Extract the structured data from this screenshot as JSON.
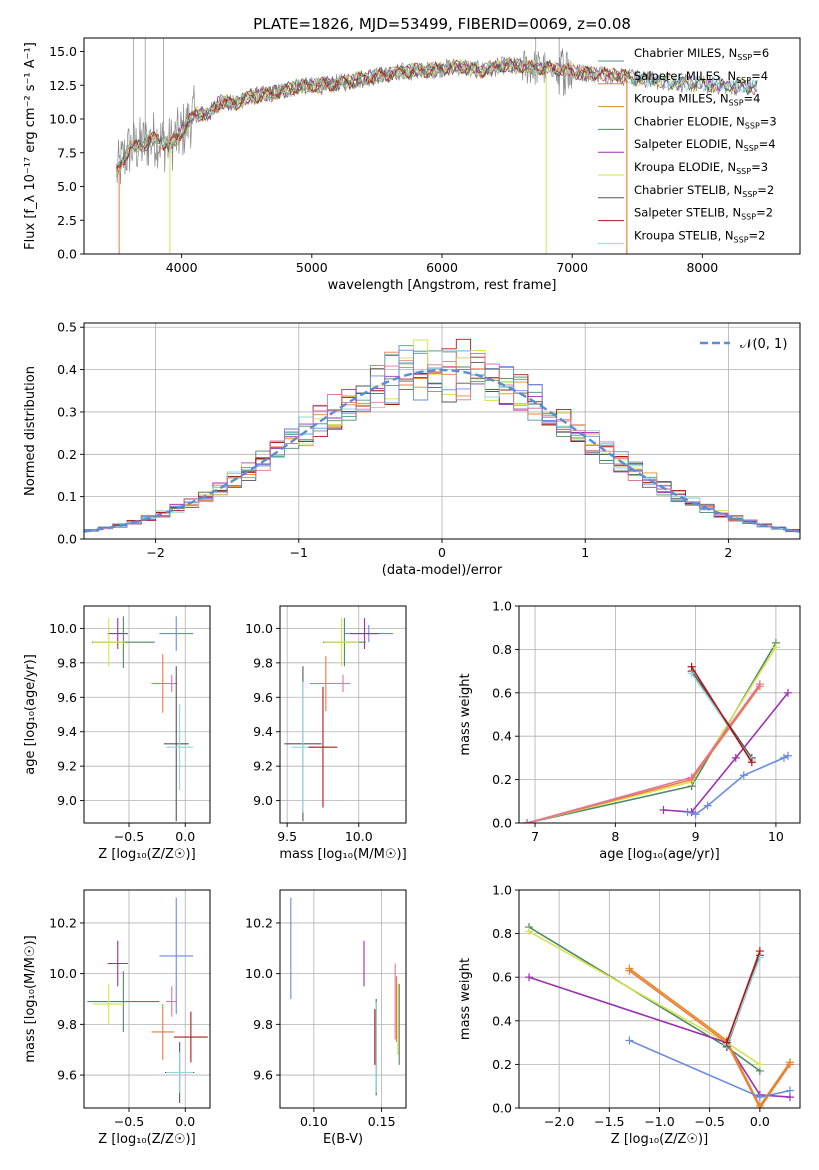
{
  "title": "PLATE=1826, MJD=53499, FIBERID=0069, z=0.08",
  "colors": {
    "Chabrier MILES": "#4f9a95",
    "Salpeter MILES": "#ef7a3c",
    "Kroupa MILES": "#e08a2a",
    "Chabrier ELODIE": "#4f8a66",
    "Salpeter ELODIE": "#9b30b0",
    "Kroupa ELODIE": "#d6e24f",
    "Chabrier STELIB": "#555555",
    "Salpeter STELIB": "#b01818",
    "Kroupa STELIB": "#8fd6dd",
    "Gauss": "#5b8dd6",
    "Extra1": "#e0759e",
    "Extra2": "#6a8bdd",
    "data": "#888888"
  },
  "chart_data": [
    {
      "id": "spectrum",
      "type": "line",
      "title": "PLATE=1826, MJD=53499, FIBERID=0069, z=0.08",
      "xlabel": "wavelength [Angstrom, rest frame]",
      "ylabel": "Flux [f_λ 10⁻¹⁷ erg cm⁻² s⁻¹ A⁻¹]",
      "xlim": [
        3250,
        8750
      ],
      "ylim": [
        0,
        16
      ],
      "xticks": [
        4000,
        5000,
        6000,
        7000,
        8000
      ],
      "yticks": [
        0.0,
        2.5,
        5.0,
        7.5,
        10.0,
        12.5,
        15.0
      ],
      "grid": false,
      "legend_loc": "upper-right",
      "continuum": {
        "x": [
          3500,
          3550,
          3600,
          3700,
          3800,
          3900,
          4000,
          4100,
          4200,
          4300,
          4400,
          4500,
          4700,
          4900,
          5100,
          5300,
          5500,
          5700,
          5900,
          6100,
          6300,
          6500,
          6700,
          6900,
          7100,
          7300,
          7500,
          7700,
          7900,
          8100,
          8300,
          8400
        ],
        "y": [
          6.0,
          7.0,
          7.8,
          8.1,
          8.6,
          8.0,
          9.0,
          10.4,
          10.3,
          11.3,
          11.1,
          11.6,
          11.9,
          12.4,
          12.5,
          12.8,
          13.2,
          13.5,
          13.6,
          13.9,
          13.6,
          14.0,
          13.8,
          13.7,
          13.4,
          13.3,
          13.0,
          12.8,
          12.6,
          12.5,
          12.4,
          12.4
        ]
      },
      "legend": [
        {
          "name": "Chabrier MILES, N_SSP=6",
          "key": "Chabrier MILES"
        },
        {
          "name": "Salpeter MILES, N_SSP=4",
          "key": "Salpeter MILES"
        },
        {
          "name": "Kroupa MILES, N_SSP=4",
          "key": "Kroupa MILES"
        },
        {
          "name": "Chabrier ELODIE, N_SSP=3",
          "key": "Chabrier ELODIE"
        },
        {
          "name": "Salpeter ELODIE, N_SSP=4",
          "key": "Salpeter ELODIE"
        },
        {
          "name": "Kroupa ELODIE, N_SSP=3",
          "key": "Kroupa ELODIE"
        },
        {
          "name": "Chabrier STELIB, N_SSP=2",
          "key": "Chabrier STELIB"
        },
        {
          "name": "Salpeter STELIB, N_SSP=2",
          "key": "Salpeter STELIB"
        },
        {
          "name": "Kroupa STELIB, N_SSP=2",
          "key": "Kroupa STELIB"
        }
      ]
    },
    {
      "id": "residuals",
      "type": "line",
      "xlabel": "(data-model)/error",
      "ylabel": "Normed distribution",
      "xlim": [
        -2.5,
        2.5
      ],
      "ylim": [
        0,
        0.51
      ],
      "xticks": [
        -2,
        -1,
        0,
        1,
        2
      ],
      "yticks": [
        0.0,
        0.1,
        0.2,
        0.3,
        0.4,
        0.5
      ],
      "grid": true,
      "legend": [
        {
          "name": "𝒩(0, 1)",
          "key": "Gauss"
        }
      ],
      "legend_loc": "upper-right",
      "bin_width": 0.1,
      "gaussian": {
        "mean": 0,
        "sigma": 1
      }
    },
    {
      "id": "age-vs-Z",
      "type": "scatter",
      "xlabel": "Z [log₁₀(Z/Z☉)]",
      "ylabel": "age  [log₁₀(age/yr)]",
      "xlim": [
        -0.9,
        0.22
      ],
      "ylim": [
        8.87,
        10.13
      ],
      "xticks": [
        -0.5,
        0.0
      ],
      "yticks": [
        9.0,
        9.2,
        9.4,
        9.6,
        9.8,
        10.0
      ],
      "grid": true,
      "points": [
        {
          "x": -0.6,
          "y": 9.97,
          "xerr": 0.09,
          "yerr": 0.09,
          "key": "Salpeter ELODIE"
        },
        {
          "x": -0.08,
          "y": 9.97,
          "xerr": 0.15,
          "yerr": 0.1,
          "key": "Extra2"
        },
        {
          "x": -0.55,
          "y": 9.92,
          "xerr": 0.28,
          "yerr": 0.15,
          "key": "Chabrier ELODIE"
        },
        {
          "x": -0.68,
          "y": 9.92,
          "xerr": 0.14,
          "yerr": 0.14,
          "key": "Kroupa ELODIE"
        },
        {
          "x": -0.2,
          "y": 9.68,
          "xerr": 0.1,
          "yerr": 0.17,
          "key": "Salpeter MILES"
        },
        {
          "x": -0.12,
          "y": 9.68,
          "xerr": 0.05,
          "yerr": 0.05,
          "key": "Extra1"
        },
        {
          "x": -0.08,
          "y": 9.33,
          "xerr": 0.11,
          "yerr": 0.45,
          "key": "Chabrier STELIB"
        },
        {
          "x": -0.05,
          "y": 9.31,
          "xerr": 0.12,
          "yerr": 0.25,
          "key": "Kroupa STELIB"
        }
      ]
    },
    {
      "id": "age-vs-mass",
      "type": "scatter",
      "xlabel": "mass [log₁₀(M/M☉)]",
      "ylabel": "",
      "xlim": [
        9.45,
        10.33
      ],
      "ylim": [
        8.87,
        10.13
      ],
      "xticks": [
        9.5,
        10.0
      ],
      "yticks": [
        9.0,
        9.2,
        9.4,
        9.6,
        9.8,
        10.0
      ],
      "grid": true,
      "points": [
        {
          "x": 10.07,
          "y": 9.97,
          "xerr": 0.17,
          "yerr": 0.05,
          "key": "Extra2"
        },
        {
          "x": 10.04,
          "y": 9.97,
          "xerr": 0.1,
          "yerr": 0.09,
          "key": "Salpeter ELODIE"
        },
        {
          "x": 9.9,
          "y": 9.92,
          "xerr": 0.15,
          "yerr": 0.14,
          "key": "Chabrier ELODIE"
        },
        {
          "x": 9.88,
          "y": 9.92,
          "xerr": 0.12,
          "yerr": 0.14,
          "key": "Kroupa ELODIE"
        },
        {
          "x": 9.77,
          "y": 9.68,
          "xerr": 0.11,
          "yerr": 0.16,
          "key": "Salpeter MILES"
        },
        {
          "x": 9.89,
          "y": 9.68,
          "xerr": 0.05,
          "yerr": 0.05,
          "key": "Extra1"
        },
        {
          "x": 9.61,
          "y": 9.33,
          "xerr": 0.13,
          "yerr": 0.45,
          "key": "Chabrier STELIB"
        },
        {
          "x": 9.61,
          "y": 9.31,
          "xerr": 0.08,
          "yerr": 0.38,
          "key": "Kroupa STELIB"
        },
        {
          "x": 9.75,
          "y": 9.31,
          "xerr": 0.1,
          "yerr": 0.35,
          "key": "Salpeter STELIB"
        }
      ]
    },
    {
      "id": "mass-weight-vs-age",
      "type": "line",
      "xlabel": "age  [log₁₀(age/yr)]",
      "ylabel": "mass weight",
      "xlim": [
        6.8,
        10.3
      ],
      "ylim": [
        0,
        1
      ],
      "xticks": [
        7,
        8,
        9,
        10
      ],
      "yticks": [
        0.0,
        0.2,
        0.4,
        0.6,
        0.8,
        1.0
      ],
      "grid": true,
      "series": [
        {
          "key": "Chabrier ELODIE",
          "x": [
            6.9,
            8.95,
            10.0
          ],
          "y": [
            0.0,
            0.17,
            0.83
          ]
        },
        {
          "key": "Kroupa ELODIE",
          "x": [
            6.9,
            8.95,
            10.0
          ],
          "y": [
            0.0,
            0.19,
            0.81
          ]
        },
        {
          "key": "Salpeter MILES",
          "x": [
            6.9,
            8.95,
            9.8
          ],
          "y": [
            0.0,
            0.2,
            0.63
          ]
        },
        {
          "key": "Extra1",
          "x": [
            6.9,
            8.95,
            9.8
          ],
          "y": [
            0.0,
            0.21,
            0.64
          ]
        },
        {
          "key": "Salpeter ELODIE",
          "x": [
            8.6,
            8.95,
            9.5,
            10.15
          ],
          "y": [
            0.06,
            0.05,
            0.3,
            0.6
          ]
        },
        {
          "key": "Extra2",
          "x": [
            8.9,
            9.0,
            9.15,
            9.6,
            10.1,
            10.15
          ],
          "y": [
            0.05,
            0.04,
            0.08,
            0.22,
            0.3,
            0.31
          ]
        },
        {
          "key": "Chabrier STELIB",
          "x": [
            8.95,
            9.7
          ],
          "y": [
            0.7,
            0.3
          ]
        },
        {
          "key": "Kroupa STELIB",
          "x": [
            8.95,
            9.7
          ],
          "y": [
            0.69,
            0.29
          ]
        },
        {
          "key": "Salpeter STELIB",
          "x": [
            8.95,
            9.7
          ],
          "y": [
            0.72,
            0.28
          ]
        }
      ]
    },
    {
      "id": "mass-vs-Z",
      "type": "scatter",
      "xlabel": "Z [log₁₀(Z/Z☉)]",
      "ylabel": "mass [log₁₀(M/M☉)]",
      "xlim": [
        -0.9,
        0.22
      ],
      "ylim": [
        9.47,
        10.33
      ],
      "xticks": [
        -0.5,
        0.0
      ],
      "yticks": [
        9.6,
        9.8,
        10.0,
        10.2
      ],
      "grid": true,
      "points": [
        {
          "x": -0.08,
          "y": 10.07,
          "xerr": 0.15,
          "yerr": 0.23,
          "key": "Extra2"
        },
        {
          "x": -0.6,
          "y": 10.04,
          "xerr": 0.09,
          "yerr": 0.09,
          "key": "Salpeter ELODIE"
        },
        {
          "x": -0.55,
          "y": 9.89,
          "xerr": 0.32,
          "yerr": 0.12,
          "key": "Chabrier ELODIE"
        },
        {
          "x": -0.68,
          "y": 9.88,
          "xerr": 0.14,
          "yerr": 0.08,
          "key": "Kroupa ELODIE"
        },
        {
          "x": -0.12,
          "y": 9.89,
          "xerr": 0.05,
          "yerr": 0.06,
          "key": "Extra1"
        },
        {
          "x": -0.2,
          "y": 9.77,
          "xerr": 0.1,
          "yerr": 0.11,
          "key": "Salpeter MILES"
        },
        {
          "x": 0.05,
          "y": 9.75,
          "xerr": 0.15,
          "yerr": 0.1,
          "key": "Salpeter STELIB"
        },
        {
          "x": -0.05,
          "y": 9.61,
          "xerr": 0.13,
          "yerr": 0.12,
          "key": "Chabrier STELIB"
        },
        {
          "x": -0.05,
          "y": 9.61,
          "xerr": 0.12,
          "yerr": 0.08,
          "key": "Kroupa STELIB"
        }
      ]
    },
    {
      "id": "mass-vs-EBV",
      "type": "scatter",
      "xlabel": "E(B-V)",
      "ylabel": "",
      "xlim": [
        0.075,
        0.168
      ],
      "ylim": [
        9.47,
        10.33
      ],
      "xticks": [
        0.1,
        0.15
      ],
      "yticks": [
        9.6,
        9.8,
        10.0,
        10.2
      ],
      "grid": true,
      "points": [
        {
          "x": 0.083,
          "y": 10.1,
          "xerr": 0.0,
          "yerr": 0.2,
          "key": "Extra2"
        },
        {
          "x": 0.137,
          "y": 10.04,
          "xerr": 0.0,
          "yerr": 0.09,
          "key": "Salpeter ELODIE"
        },
        {
          "x": 0.145,
          "y": 9.75,
          "xerr": 0.0,
          "yerr": 0.11,
          "key": "Salpeter STELIB"
        },
        {
          "x": 0.146,
          "y": 9.71,
          "xerr": 0.0,
          "yerr": 0.19,
          "key": "Chabrier STELIB"
        },
        {
          "x": 0.146,
          "y": 9.71,
          "xerr": 0.0,
          "yerr": 0.18,
          "key": "Kroupa STELIB"
        },
        {
          "x": 0.16,
          "y": 9.89,
          "xerr": 0.0,
          "yerr": 0.15,
          "key": "Extra1"
        },
        {
          "x": 0.161,
          "y": 9.86,
          "xerr": 0.0,
          "yerr": 0.13,
          "key": "Salpeter MILES"
        },
        {
          "x": 0.163,
          "y": 9.8,
          "xerr": 0.0,
          "yerr": 0.16,
          "key": "Chabrier ELODIE"
        },
        {
          "x": 0.162,
          "y": 9.82,
          "xerr": 0.0,
          "yerr": 0.14,
          "key": "Kroupa ELODIE"
        }
      ]
    },
    {
      "id": "mass-weight-vs-Z",
      "type": "line",
      "xlabel": "Z [log₁₀(Z/Z☉)]",
      "ylabel": "mass weight",
      "xlim": [
        -2.4,
        0.4
      ],
      "ylim": [
        0,
        1
      ],
      "xticks": [
        -2.0,
        -1.5,
        -1.0,
        -0.5,
        0.0
      ],
      "yticks": [
        0.0,
        0.2,
        0.4,
        0.6,
        0.8,
        1.0
      ],
      "grid": true,
      "series": [
        {
          "key": "Chabrier ELODIE",
          "x": [
            -2.3,
            -0.33,
            0.0
          ],
          "y": [
            0.83,
            0.28,
            0.17
          ]
        },
        {
          "key": "Kroupa ELODIE",
          "x": [
            -2.3,
            -0.33,
            0.0
          ],
          "y": [
            0.81,
            0.3,
            0.2
          ]
        },
        {
          "key": "Salpeter ELODIE",
          "x": [
            -2.3,
            -0.33,
            0.0,
            0.3
          ],
          "y": [
            0.6,
            0.3,
            0.06,
            0.05
          ]
        },
        {
          "key": "Salpeter MILES",
          "x": [
            -1.3,
            -0.33,
            0.0,
            0.3
          ],
          "y": [
            0.63,
            0.3,
            0.0,
            0.2
          ]
        },
        {
          "key": "Kroupa MILES",
          "x": [
            -1.3,
            -0.33,
            0.0,
            0.3
          ],
          "y": [
            0.64,
            0.31,
            0.01,
            0.21
          ]
        },
        {
          "key": "Extra2",
          "x": [
            -1.3,
            0.0,
            0.3
          ],
          "y": [
            0.31,
            0.05,
            0.08
          ]
        },
        {
          "key": "Chabrier STELIB",
          "x": [
            -0.33,
            0.0
          ],
          "y": [
            0.28,
            0.7
          ]
        },
        {
          "key": "Kroupa STELIB",
          "x": [
            -0.33,
            0.0
          ],
          "y": [
            0.29,
            0.69
          ]
        },
        {
          "key": "Salpeter STELIB",
          "x": [
            -0.33,
            0.0
          ],
          "y": [
            0.3,
            0.72
          ]
        }
      ]
    }
  ]
}
